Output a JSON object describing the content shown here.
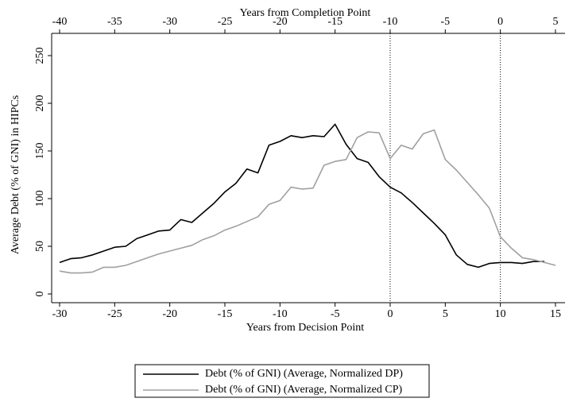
{
  "chart_data": {
    "type": "line",
    "xlabel": "Years from Decision Point",
    "x2label": "Years from Completion Point",
    "ylabel": "Average Debt (% of GNI) in HIPCs",
    "x": [
      -30,
      -29,
      -28,
      -27,
      -26,
      -25,
      -24,
      -23,
      -22,
      -21,
      -20,
      -19,
      -18,
      -17,
      -16,
      -15,
      -14,
      -13,
      -12,
      -11,
      -10,
      -9,
      -8,
      -7,
      -6,
      -5,
      -4,
      -3,
      -2,
      -1,
      0,
      1,
      2,
      3,
      4,
      5,
      6,
      7,
      8,
      9,
      10,
      11,
      12,
      13,
      14,
      15
    ],
    "series": [
      {
        "name": "Debt (% of GNI) (Average, Normalized DP)",
        "color": "#000000",
        "values": [
          33,
          37,
          38,
          41,
          45,
          49,
          50,
          58,
          62,
          66,
          67,
          78,
          75,
          85,
          95,
          107,
          116,
          131,
          127,
          156,
          160,
          166,
          164,
          166,
          165,
          178,
          157,
          142,
          138,
          123,
          112,
          106,
          96,
          85,
          74,
          62,
          41,
          31,
          28,
          32,
          33,
          33,
          32,
          34,
          34,
          null
        ]
      },
      {
        "name": "Debt (% of GNI) (Average, Normalized CP)",
        "color": "#a0a0a0",
        "values": [
          24,
          22,
          22,
          23,
          28,
          28,
          30,
          34,
          38,
          42,
          45,
          48,
          51,
          57,
          61,
          67,
          71,
          76,
          81,
          94,
          98,
          112,
          110,
          111,
          135,
          139,
          141,
          164,
          170,
          169,
          142,
          156,
          152,
          168,
          172,
          141,
          130,
          117,
          104,
          90,
          60,
          48,
          38,
          36,
          33,
          30
        ]
      }
    ],
    "xlim": [
      -30,
      15
    ],
    "xticks": [
      -30,
      -25,
      -20,
      -15,
      -10,
      -5,
      0,
      5,
      10,
      15
    ],
    "x2lim": [
      -40,
      5
    ],
    "x2ticks": [
      -40,
      -35,
      -30,
      -25,
      -20,
      -15,
      -10,
      -5,
      0,
      5
    ],
    "ylim": [
      0,
      250
    ],
    "yticks": [
      0,
      50,
      100,
      150,
      200,
      250
    ],
    "xlines": [
      0,
      10
    ]
  }
}
